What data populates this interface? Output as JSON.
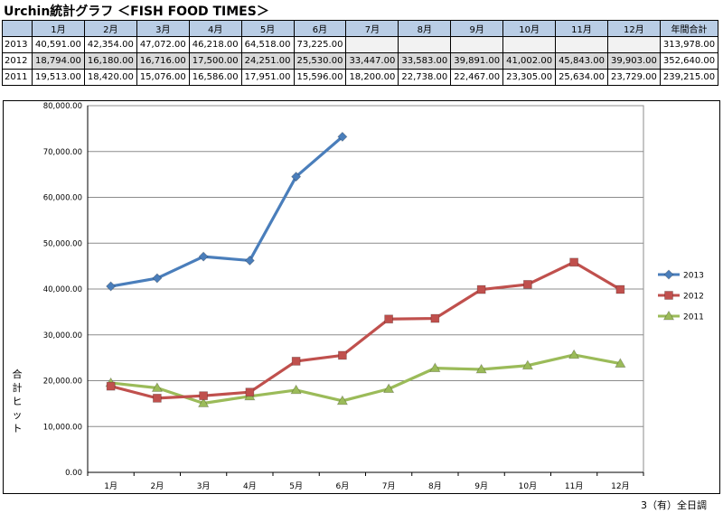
{
  "title": "Urchin統計グラフ ＜FISH FOOD TIMES＞",
  "table": {
    "headers": [
      "1月",
      "2月",
      "3月",
      "4月",
      "5月",
      "6月",
      "7月",
      "8月",
      "9月",
      "10月",
      "11月",
      "12月",
      "年間合計"
    ],
    "rows": [
      {
        "year": "2013",
        "values": [
          "40,591.00",
          "42,354.00",
          "47,072.00",
          "46,218.00",
          "64,518.00",
          "73,225.00",
          "",
          "",
          "",
          "",
          "",
          ""
        ],
        "total": "313,978.00"
      },
      {
        "year": "2012",
        "values": [
          "18,794.00",
          "16,180.00",
          "16,716.00",
          "17,500.00",
          "24,251.00",
          "25,530.00",
          "33,447.00",
          "33,583.00",
          "39,891.00",
          "41,002.00",
          "45,843.00",
          "39,903.00"
        ],
        "total": "352,640.00"
      },
      {
        "year": "2011",
        "values": [
          "19,513.00",
          "18,420.00",
          "15,076.00",
          "16,586.00",
          "17,951.00",
          "15,596.00",
          "18,200.00",
          "22,738.00",
          "22,467.00",
          "23,305.00",
          "25,634.00",
          "23,729.00"
        ],
        "total": "239,215.00"
      }
    ]
  },
  "chart_data": {
    "type": "line",
    "categories": [
      "1月",
      "2月",
      "3月",
      "4月",
      "5月",
      "6月",
      "7月",
      "8月",
      "9月",
      "10月",
      "11月",
      "12月"
    ],
    "series": [
      {
        "name": "2013",
        "color": "#4a7ebb",
        "marker": "diamond",
        "values": [
          40591,
          42354,
          47072,
          46218,
          64518,
          73225,
          null,
          null,
          null,
          null,
          null,
          null
        ]
      },
      {
        "name": "2012",
        "color": "#c0504d",
        "marker": "square",
        "values": [
          18794,
          16180,
          16716,
          17500,
          24251,
          25530,
          33447,
          33583,
          39891,
          41002,
          45843,
          39903
        ]
      },
      {
        "name": "2011",
        "color": "#9bbb59",
        "marker": "triangle",
        "values": [
          19513,
          18420,
          15076,
          16586,
          17951,
          15596,
          18200,
          22738,
          22467,
          23305,
          25634,
          23729
        ]
      }
    ],
    "ylabel": "合計ヒット",
    "ylim": [
      0,
      80000
    ],
    "yticks": [
      "0.00",
      "10,000.00",
      "20,000.00",
      "30,000.00",
      "40,000.00",
      "50,000.00",
      "60,000.00",
      "70,000.00",
      "80,000.00"
    ],
    "grid": true,
    "legend": "right"
  },
  "credit": "3（有）全日調"
}
